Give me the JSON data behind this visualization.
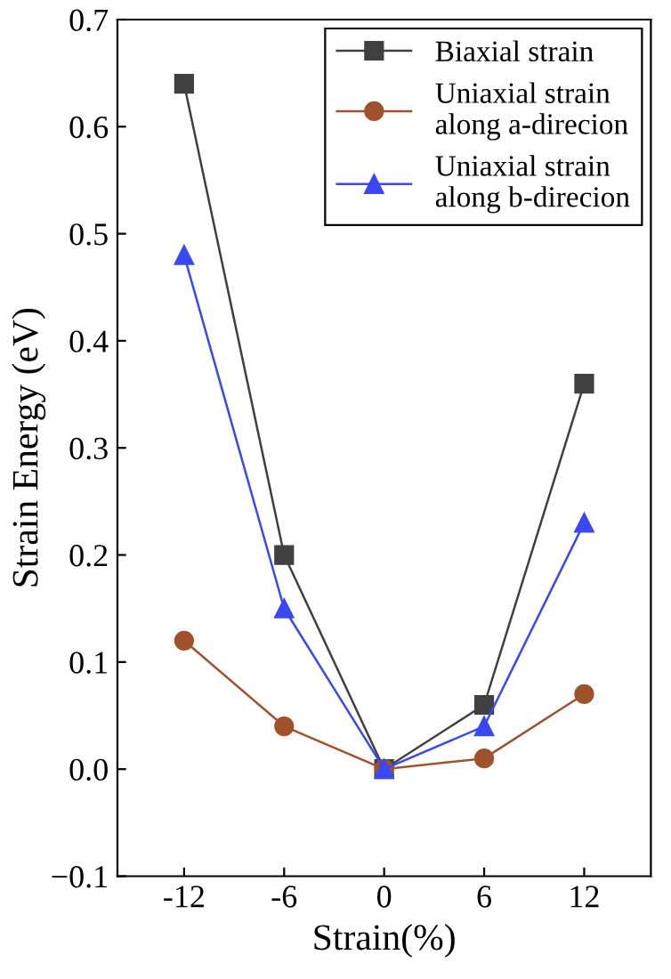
{
  "chart_data": {
    "type": "line",
    "xlabel": "Strain(%)",
    "ylabel": "Strain Energy (eV)",
    "x": [
      -12,
      -6,
      0,
      6,
      12
    ],
    "series": [
      {
        "name": "Biaxial strain",
        "color": "#404040",
        "marker": "square",
        "values": [
          0.64,
          0.2,
          0.0,
          0.06,
          0.36
        ]
      },
      {
        "name": "Uniaxial strain\nalong a-direcion",
        "color": "#a0522d",
        "marker": "circle",
        "values": [
          0.12,
          0.04,
          0.0,
          0.01,
          0.07
        ]
      },
      {
        "name": "Uniaxial strain\nalong b-direcion",
        "color": "#3a48f0",
        "marker": "triangle",
        "values": [
          0.48,
          0.15,
          0.0,
          0.04,
          0.23
        ]
      }
    ],
    "xlim": [
      -16,
      16
    ],
    "xticks": [
      -12,
      -6,
      0,
      6,
      12
    ],
    "ylim": [
      -0.1,
      0.7
    ],
    "yticks": [
      {
        "value": -0.1,
        "label": "−0.1"
      },
      {
        "value": 0.0,
        "label": "0.0"
      },
      {
        "value": 0.1,
        "label": "0.1"
      },
      {
        "value": 0.2,
        "label": "0.2"
      },
      {
        "value": 0.3,
        "label": "0.3"
      },
      {
        "value": 0.4,
        "label": "0.4"
      },
      {
        "value": 0.5,
        "label": "0.5"
      },
      {
        "value": 0.6,
        "label": "0.6"
      },
      {
        "value": 0.7,
        "label": "0.7"
      }
    ],
    "legend": "top right",
    "line_style": "solid",
    "grid": false
  }
}
